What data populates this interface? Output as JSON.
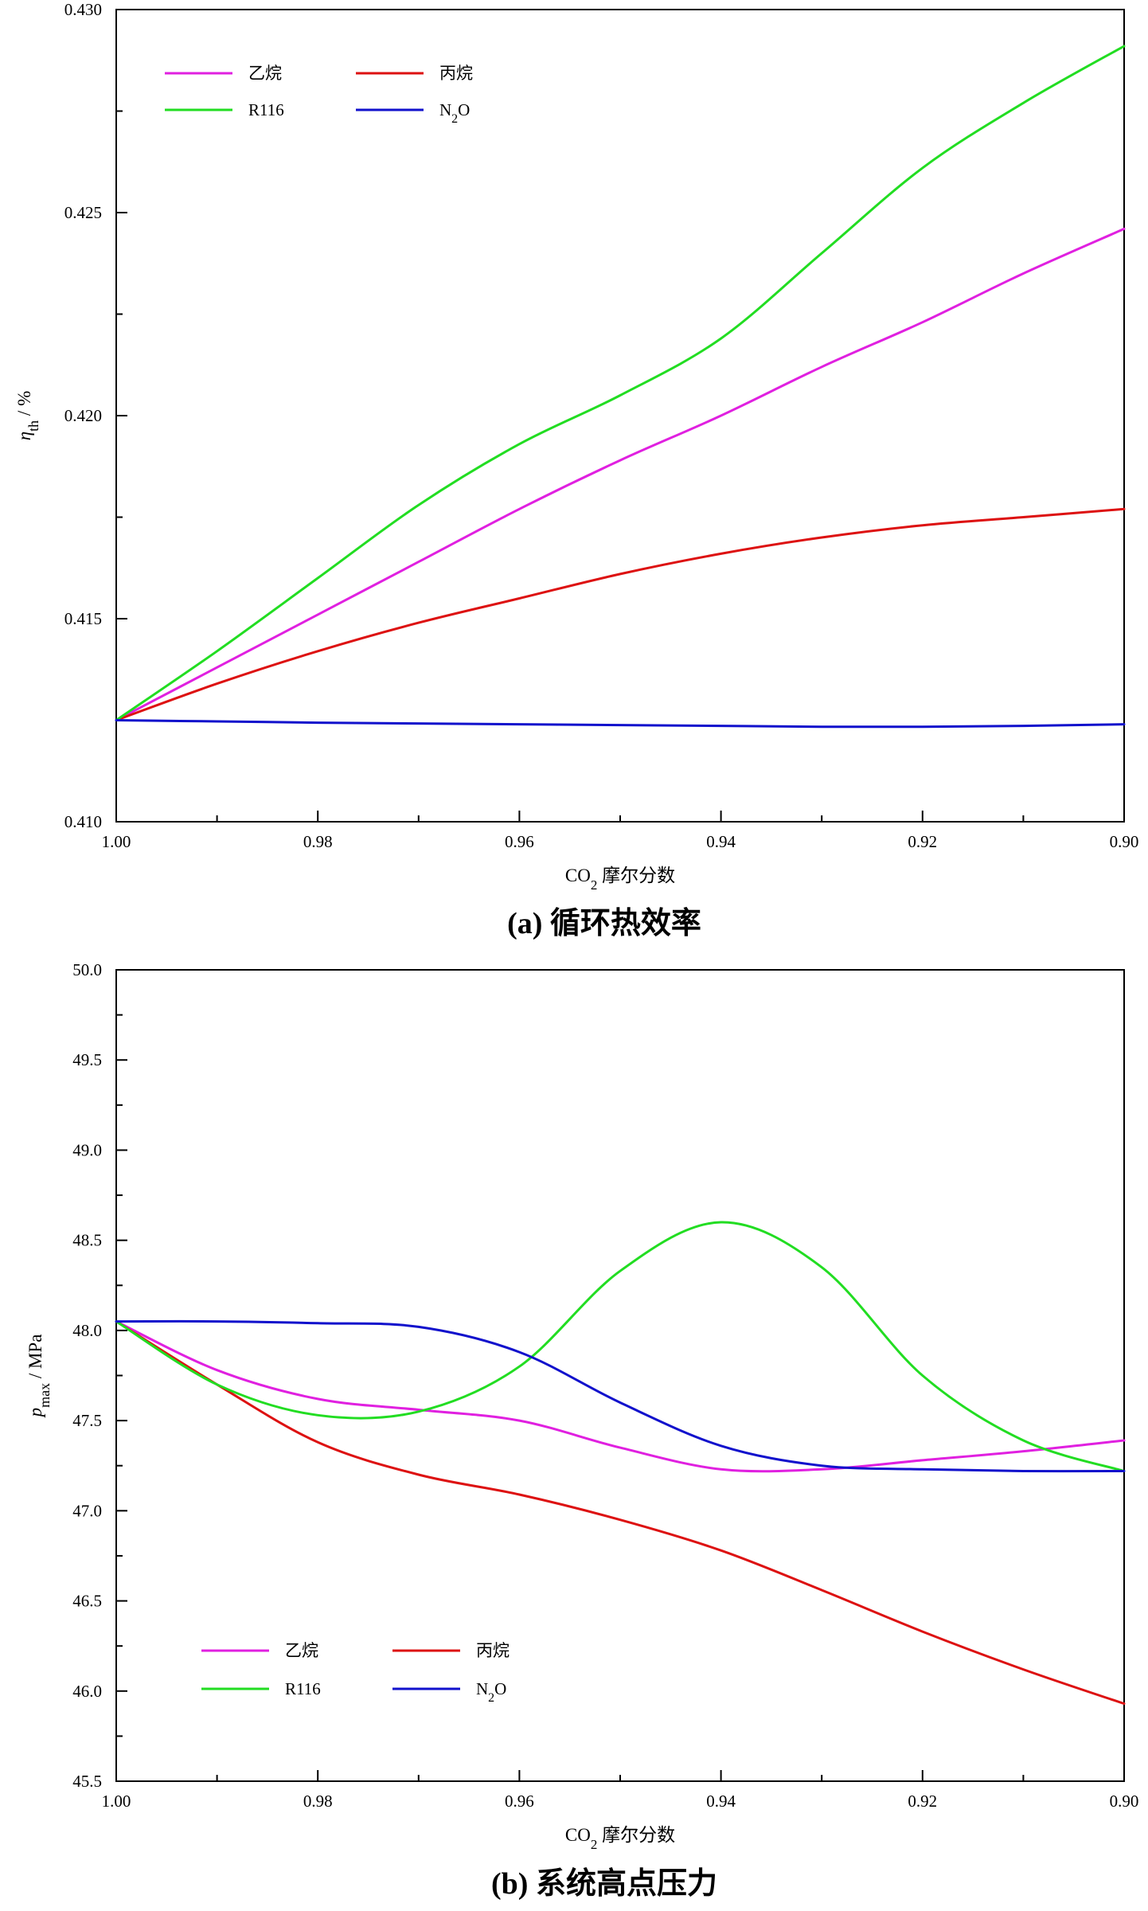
{
  "chart_data": [
    {
      "type": "line",
      "caption": "(a) 循环热效率",
      "xlabel": "摩尔分数",
      "xlabel_prefix": "CO",
      "xlabel_sub": "2",
      "ylabel": "η",
      "ylabel_sub": "th",
      "ylabel_unit": " / %",
      "xlim": [
        1.0,
        0.9
      ],
      "ylim": [
        0.41,
        0.43
      ],
      "x_ticks": [
        1.0,
        0.98,
        0.96,
        0.94,
        0.92,
        0.9
      ],
      "x_tick_labels": [
        "1.00",
        "0.98",
        "0.96",
        "0.94",
        "0.92",
        "0.90"
      ],
      "y_ticks": [
        0.41,
        0.415,
        0.42,
        0.425,
        0.43
      ],
      "y_tick_labels": [
        "0.410",
        "0.415",
        "0.420",
        "0.425",
        "0.430"
      ],
      "legend_position": "top-left",
      "grid": false,
      "series": [
        {
          "name": "乙烷",
          "color": "#e020e0",
          "x": [
            1.0,
            0.99,
            0.98,
            0.97,
            0.96,
            0.95,
            0.94,
            0.93,
            0.92,
            0.91,
            0.9
          ],
          "y": [
            0.4125,
            0.4138,
            0.4151,
            0.4164,
            0.4177,
            0.4189,
            0.42,
            0.4212,
            0.4223,
            0.4235,
            0.4246
          ]
        },
        {
          "name": "丙烷",
          "color": "#dd1111",
          "x": [
            1.0,
            0.99,
            0.98,
            0.97,
            0.96,
            0.95,
            0.94,
            0.93,
            0.92,
            0.91,
            0.9
          ],
          "y": [
            0.4125,
            0.4134,
            0.4142,
            0.4149,
            0.4155,
            0.4161,
            0.4166,
            0.417,
            0.4173,
            0.4175,
            0.4177
          ]
        },
        {
          "name": "R116",
          "color": "#22dd22",
          "x": [
            1.0,
            0.99,
            0.98,
            0.97,
            0.96,
            0.95,
            0.94,
            0.93,
            0.92,
            0.91,
            0.9
          ],
          "y": [
            0.4125,
            0.4142,
            0.416,
            0.4178,
            0.4193,
            0.4205,
            0.4219,
            0.424,
            0.4261,
            0.4277,
            0.4291
          ]
        },
        {
          "name": "N",
          "name_sub": "2",
          "name_suffix": "O",
          "color": "#1111cc",
          "x": [
            1.0,
            0.99,
            0.98,
            0.97,
            0.96,
            0.95,
            0.94,
            0.93,
            0.92,
            0.91,
            0.9
          ],
          "y": [
            0.4125,
            0.41247,
            0.41244,
            0.41242,
            0.4124,
            0.41238,
            0.41236,
            0.41234,
            0.41234,
            0.41236,
            0.4124
          ]
        }
      ]
    },
    {
      "type": "line",
      "caption": "(b) 系统高点压力",
      "xlabel": "摩尔分数",
      "xlabel_prefix": "CO",
      "xlabel_sub": "2",
      "ylabel": "p",
      "ylabel_sub": "max",
      "ylabel_unit": " / MPa",
      "xlim": [
        1.0,
        0.9
      ],
      "ylim": [
        45.5,
        50.0
      ],
      "x_ticks": [
        1.0,
        0.98,
        0.96,
        0.94,
        0.92,
        0.9
      ],
      "x_tick_labels": [
        "1.00",
        "0.98",
        "0.96",
        "0.94",
        "0.92",
        "0.90"
      ],
      "y_ticks": [
        45.5,
        46.0,
        46.5,
        47.0,
        47.5,
        48.0,
        48.5,
        49.0,
        49.5,
        50.0
      ],
      "y_tick_labels": [
        "45.5",
        "46.0",
        "46.5",
        "47.0",
        "47.5",
        "48.0",
        "48.5",
        "49.0",
        "49.5",
        "50.0"
      ],
      "legend_position": "bottom-left",
      "grid": false,
      "series": [
        {
          "name": "乙烷",
          "color": "#e020e0",
          "x": [
            1.0,
            0.99,
            0.98,
            0.97,
            0.96,
            0.95,
            0.94,
            0.93,
            0.92,
            0.91,
            0.9
          ],
          "y": [
            48.05,
            47.78,
            47.62,
            47.56,
            47.5,
            47.35,
            47.23,
            47.23,
            47.28,
            47.33,
            47.39
          ]
        },
        {
          "name": "丙烷",
          "color": "#dd1111",
          "x": [
            1.0,
            0.99,
            0.98,
            0.97,
            0.96,
            0.95,
            0.94,
            0.93,
            0.92,
            0.91,
            0.9
          ],
          "y": [
            48.05,
            47.7,
            47.38,
            47.2,
            47.09,
            46.95,
            46.78,
            46.56,
            46.33,
            46.12,
            45.93
          ]
        },
        {
          "name": "R116",
          "color": "#22dd22",
          "x": [
            1.0,
            0.99,
            0.98,
            0.97,
            0.96,
            0.95,
            0.94,
            0.93,
            0.92,
            0.91,
            0.9
          ],
          "y": [
            48.05,
            47.7,
            47.53,
            47.55,
            47.8,
            48.33,
            48.6,
            48.35,
            47.75,
            47.39,
            47.22
          ]
        },
        {
          "name": "N",
          "name_sub": "2",
          "name_suffix": "O",
          "color": "#1111cc",
          "x": [
            1.0,
            0.99,
            0.98,
            0.97,
            0.96,
            0.95,
            0.94,
            0.93,
            0.92,
            0.91,
            0.9
          ],
          "y": [
            48.05,
            48.05,
            48.04,
            48.02,
            47.88,
            47.6,
            47.36,
            47.25,
            47.23,
            47.22,
            47.22
          ]
        }
      ]
    }
  ]
}
